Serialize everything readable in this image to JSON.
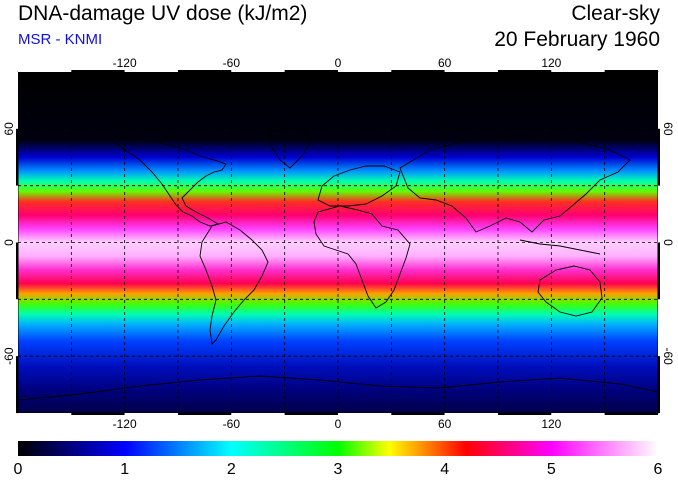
{
  "header": {
    "title": "DNA-damage UV dose (kJ/m2)",
    "source": "MSR - KNMI",
    "condition": "Clear-sky",
    "date": "20 February 1960"
  },
  "map": {
    "lon_range": [
      -180,
      180
    ],
    "lat_range": [
      -90,
      90
    ],
    "lon_ticks": [
      "-120",
      "-60",
      "0",
      "60",
      "120"
    ],
    "lat_ticks_left": [
      "60",
      "0",
      "-60"
    ],
    "lat_ticks_right": [
      "60",
      "0",
      "-60"
    ],
    "lon_tick_values": [
      -120,
      -60,
      0,
      60,
      120
    ],
    "lat_tick_values": [
      60,
      0,
      -60
    ],
    "grid_lines": true
  },
  "colorbar": {
    "labels": [
      "0",
      "1",
      "2",
      "3",
      "4",
      "5",
      "6"
    ],
    "min": 0,
    "max": 6,
    "colors": [
      "#000000",
      "#0000ff",
      "#00ffff",
      "#00ff00",
      "#ffff00",
      "#ff0000",
      "#ff00ff",
      "#ffffff"
    ]
  }
}
